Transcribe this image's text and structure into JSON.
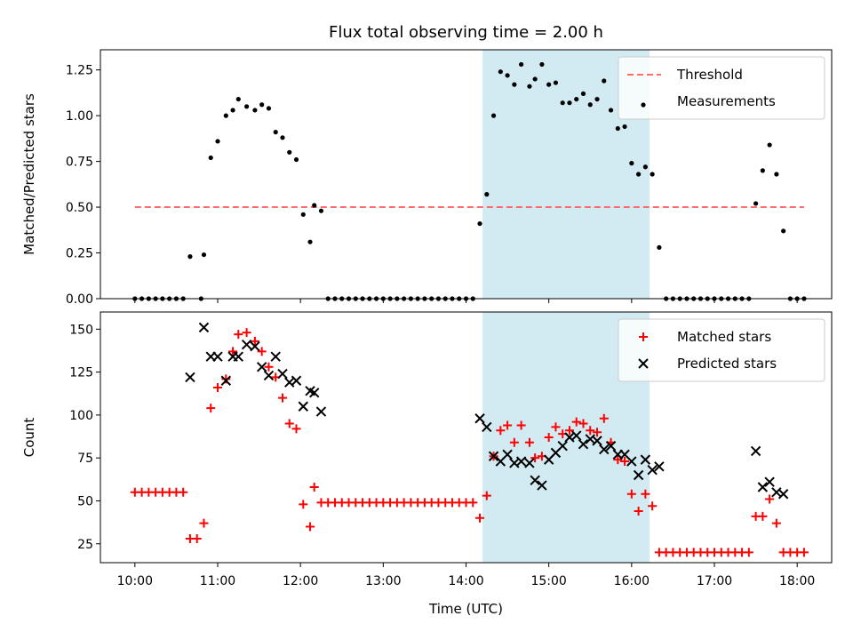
{
  "figure": {
    "title": "Flux total observing time = 2.00 h",
    "xlabel": "Time (UTC)"
  },
  "colors": {
    "shade": "#add8e6",
    "threshold": "#ff6b6b",
    "measurements": "#000000",
    "matched": "#ff0000",
    "predicted": "#000000"
  },
  "chart_data": [
    {
      "type": "scatter",
      "ylabel": "Matched/Predicted stars",
      "xlim": [
        "09:35",
        "18:25"
      ],
      "ylim": [
        0,
        1.36
      ],
      "yticks": [
        0.0,
        0.25,
        0.5,
        0.75,
        1.0,
        1.25
      ],
      "ytick_labels": [
        "0.00",
        "0.25",
        "0.50",
        "0.75",
        "1.00",
        "1.25"
      ],
      "shaded_region": [
        "14:12",
        "16:13"
      ],
      "legend_position": "upper right",
      "threshold": {
        "name": "Threshold",
        "value": 0.5,
        "x_range": [
          "10:00",
          "18:05"
        ]
      },
      "series": [
        {
          "name": "Measurements",
          "points": [
            [
              "10:00",
              0
            ],
            [
              "10:05",
              0
            ],
            [
              "10:10",
              0
            ],
            [
              "10:15",
              0
            ],
            [
              "10:20",
              0
            ],
            [
              "10:25",
              0
            ],
            [
              "10:30",
              0
            ],
            [
              "10:35",
              0
            ],
            [
              "10:40",
              0.23
            ],
            [
              "10:48",
              0.0
            ],
            [
              "10:50",
              0.24
            ],
            [
              "10:55",
              0.77
            ],
            [
              "11:00",
              0.86
            ],
            [
              "11:06",
              1.0
            ],
            [
              "11:11",
              1.03
            ],
            [
              "11:15",
              1.09
            ],
            [
              "11:21",
              1.05
            ],
            [
              "11:27",
              1.03
            ],
            [
              "11:32",
              1.06
            ],
            [
              "11:37",
              1.04
            ],
            [
              "11:42",
              0.91
            ],
            [
              "11:47",
              0.88
            ],
            [
              "11:52",
              0.8
            ],
            [
              "11:57",
              0.76
            ],
            [
              "12:02",
              0.46
            ],
            [
              "12:07",
              0.31
            ],
            [
              "12:10",
              0.51
            ],
            [
              "12:15",
              0.48
            ],
            [
              "12:20",
              0
            ],
            [
              "12:25",
              0
            ],
            [
              "12:30",
              0
            ],
            [
              "12:35",
              0
            ],
            [
              "12:40",
              0
            ],
            [
              "12:45",
              0
            ],
            [
              "12:50",
              0
            ],
            [
              "12:55",
              0
            ],
            [
              "13:00",
              0
            ],
            [
              "13:05",
              0
            ],
            [
              "13:10",
              0
            ],
            [
              "13:15",
              0
            ],
            [
              "13:20",
              0
            ],
            [
              "13:25",
              0
            ],
            [
              "13:30",
              0
            ],
            [
              "13:35",
              0
            ],
            [
              "13:40",
              0
            ],
            [
              "13:45",
              0
            ],
            [
              "13:50",
              0
            ],
            [
              "13:55",
              0
            ],
            [
              "14:00",
              0
            ],
            [
              "14:05",
              0
            ],
            [
              "14:10",
              0.41
            ],
            [
              "14:15",
              0.57
            ],
            [
              "14:20",
              1.0
            ],
            [
              "14:25",
              1.24
            ],
            [
              "14:30",
              1.22
            ],
            [
              "14:35",
              1.17
            ],
            [
              "14:40",
              1.28
            ],
            [
              "14:46",
              1.16
            ],
            [
              "14:50",
              1.2
            ],
            [
              "14:55",
              1.28
            ],
            [
              "15:00",
              1.17
            ],
            [
              "15:05",
              1.18
            ],
            [
              "15:10",
              1.07
            ],
            [
              "15:15",
              1.07
            ],
            [
              "15:20",
              1.09
            ],
            [
              "15:25",
              1.12
            ],
            [
              "15:30",
              1.06
            ],
            [
              "15:35",
              1.09
            ],
            [
              "15:40",
              1.19
            ],
            [
              "15:45",
              1.03
            ],
            [
              "15:50",
              0.93
            ],
            [
              "15:55",
              0.94
            ],
            [
              "16:00",
              0.74
            ],
            [
              "16:05",
              0.68
            ],
            [
              "16:10",
              0.72
            ],
            [
              "16:15",
              0.68
            ],
            [
              "16:20",
              0.28
            ],
            [
              "16:25",
              0
            ],
            [
              "16:30",
              0
            ],
            [
              "16:35",
              0
            ],
            [
              "16:40",
              0
            ],
            [
              "16:45",
              0
            ],
            [
              "16:50",
              0
            ],
            [
              "16:55",
              0
            ],
            [
              "17:00",
              0
            ],
            [
              "17:05",
              0
            ],
            [
              "17:10",
              0
            ],
            [
              "17:15",
              0
            ],
            [
              "17:20",
              0
            ],
            [
              "17:25",
              0
            ],
            [
              "17:30",
              0.52
            ],
            [
              "17:35",
              0.7
            ],
            [
              "17:40",
              0.84
            ],
            [
              "17:45",
              0.68
            ],
            [
              "17:50",
              0.37
            ],
            [
              "17:55",
              0
            ],
            [
              "18:00",
              0
            ],
            [
              "18:05",
              0
            ]
          ]
        }
      ]
    },
    {
      "type": "scatter",
      "ylabel": "Count",
      "xlim": [
        "09:35",
        "18:25"
      ],
      "ylim": [
        14,
        160
      ],
      "yticks": [
        25,
        50,
        75,
        100,
        125,
        150
      ],
      "ytick_labels": [
        "25",
        "50",
        "75",
        "100",
        "125",
        "150"
      ],
      "xticks": [
        "10:00",
        "11:00",
        "12:00",
        "13:00",
        "14:00",
        "15:00",
        "16:00",
        "17:00",
        "18:00"
      ],
      "shaded_region": [
        "14:12",
        "16:13"
      ],
      "legend_position": "upper right",
      "series": [
        {
          "name": "Matched stars",
          "marker": "plus",
          "points": [
            [
              "10:00",
              55
            ],
            [
              "10:05",
              55
            ],
            [
              "10:10",
              55
            ],
            [
              "10:15",
              55
            ],
            [
              "10:20",
              55
            ],
            [
              "10:25",
              55
            ],
            [
              "10:30",
              55
            ],
            [
              "10:35",
              55
            ],
            [
              "10:40",
              28
            ],
            [
              "10:45",
              28
            ],
            [
              "10:50",
              37
            ],
            [
              "10:55",
              104
            ],
            [
              "11:00",
              116
            ],
            [
              "11:06",
              121
            ],
            [
              "11:11",
              137
            ],
            [
              "11:15",
              147
            ],
            [
              "11:21",
              148
            ],
            [
              "11:27",
              143
            ],
            [
              "11:32",
              137
            ],
            [
              "11:37",
              128
            ],
            [
              "11:42",
              122
            ],
            [
              "11:47",
              110
            ],
            [
              "11:52",
              95
            ],
            [
              "11:57",
              92
            ],
            [
              "12:02",
              48
            ],
            [
              "12:07",
              35
            ],
            [
              "12:10",
              58
            ],
            [
              "12:15",
              49
            ],
            [
              "12:20",
              49
            ],
            [
              "12:25",
              49
            ],
            [
              "12:30",
              49
            ],
            [
              "12:35",
              49
            ],
            [
              "12:40",
              49
            ],
            [
              "12:45",
              49
            ],
            [
              "12:50",
              49
            ],
            [
              "12:55",
              49
            ],
            [
              "13:00",
              49
            ],
            [
              "13:05",
              49
            ],
            [
              "13:10",
              49
            ],
            [
              "13:15",
              49
            ],
            [
              "13:20",
              49
            ],
            [
              "13:25",
              49
            ],
            [
              "13:30",
              49
            ],
            [
              "13:35",
              49
            ],
            [
              "13:40",
              49
            ],
            [
              "13:45",
              49
            ],
            [
              "13:50",
              49
            ],
            [
              "13:55",
              49
            ],
            [
              "14:00",
              49
            ],
            [
              "14:05",
              49
            ],
            [
              "14:10",
              40
            ],
            [
              "14:15",
              53
            ],
            [
              "14:20",
              76
            ],
            [
              "14:25",
              91
            ],
            [
              "14:30",
              94
            ],
            [
              "14:35",
              84
            ],
            [
              "14:40",
              94
            ],
            [
              "14:46",
              84
            ],
            [
              "14:50",
              75
            ],
            [
              "14:55",
              76
            ],
            [
              "15:00",
              87
            ],
            [
              "15:05",
              93
            ],
            [
              "15:10",
              89
            ],
            [
              "15:15",
              91
            ],
            [
              "15:20",
              96
            ],
            [
              "15:25",
              95
            ],
            [
              "15:30",
              91
            ],
            [
              "15:35",
              90
            ],
            [
              "15:40",
              98
            ],
            [
              "15:45",
              84
            ],
            [
              "15:50",
              74
            ],
            [
              "15:55",
              73
            ],
            [
              "16:00",
              54
            ],
            [
              "16:05",
              44
            ],
            [
              "16:10",
              54
            ],
            [
              "16:15",
              47
            ],
            [
              "16:20",
              20
            ],
            [
              "16:25",
              20
            ],
            [
              "16:30",
              20
            ],
            [
              "16:35",
              20
            ],
            [
              "16:40",
              20
            ],
            [
              "16:45",
              20
            ],
            [
              "16:50",
              20
            ],
            [
              "16:55",
              20
            ],
            [
              "17:00",
              20
            ],
            [
              "17:05",
              20
            ],
            [
              "17:10",
              20
            ],
            [
              "17:15",
              20
            ],
            [
              "17:20",
              20
            ],
            [
              "17:25",
              20
            ],
            [
              "17:30",
              41
            ],
            [
              "17:35",
              41
            ],
            [
              "17:40",
              51
            ],
            [
              "17:45",
              37
            ],
            [
              "17:50",
              20
            ],
            [
              "17:55",
              20
            ],
            [
              "18:00",
              20
            ],
            [
              "18:05",
              20
            ]
          ]
        },
        {
          "name": "Predicted stars",
          "marker": "x",
          "points": [
            [
              "10:40",
              122
            ],
            [
              "10:50",
              151
            ],
            [
              "10:55",
              134
            ],
            [
              "11:00",
              134
            ],
            [
              "11:06",
              120
            ],
            [
              "11:11",
              134
            ],
            [
              "11:15",
              134
            ],
            [
              "11:21",
              141
            ],
            [
              "11:27",
              140
            ],
            [
              "11:32",
              128
            ],
            [
              "11:37",
              123
            ],
            [
              "11:42",
              134
            ],
            [
              "11:47",
              124
            ],
            [
              "11:52",
              119
            ],
            [
              "11:57",
              120
            ],
            [
              "12:02",
              105
            ],
            [
              "12:07",
              114
            ],
            [
              "12:10",
              113
            ],
            [
              "12:15",
              102
            ],
            [
              "14:10",
              98
            ],
            [
              "14:15",
              93
            ],
            [
              "14:20",
              76
            ],
            [
              "14:25",
              73
            ],
            [
              "14:30",
              77
            ],
            [
              "14:35",
              72
            ],
            [
              "14:40",
              73
            ],
            [
              "14:46",
              72
            ],
            [
              "14:50",
              62
            ],
            [
              "14:55",
              59
            ],
            [
              "15:00",
              74
            ],
            [
              "15:05",
              78
            ],
            [
              "15:10",
              82
            ],
            [
              "15:15",
              87
            ],
            [
              "15:20",
              88
            ],
            [
              "15:25",
              83
            ],
            [
              "15:30",
              86
            ],
            [
              "15:35",
              85
            ],
            [
              "15:40",
              80
            ],
            [
              "15:45",
              82
            ],
            [
              "15:50",
              77
            ],
            [
              "15:55",
              77
            ],
            [
              "16:00",
              73
            ],
            [
              "16:05",
              65
            ],
            [
              "16:10",
              74
            ],
            [
              "16:15",
              68
            ],
            [
              "16:20",
              70
            ],
            [
              "17:30",
              79
            ],
            [
              "17:35",
              58
            ],
            [
              "17:40",
              61
            ],
            [
              "17:45",
              55
            ],
            [
              "17:50",
              54
            ]
          ]
        }
      ]
    }
  ]
}
